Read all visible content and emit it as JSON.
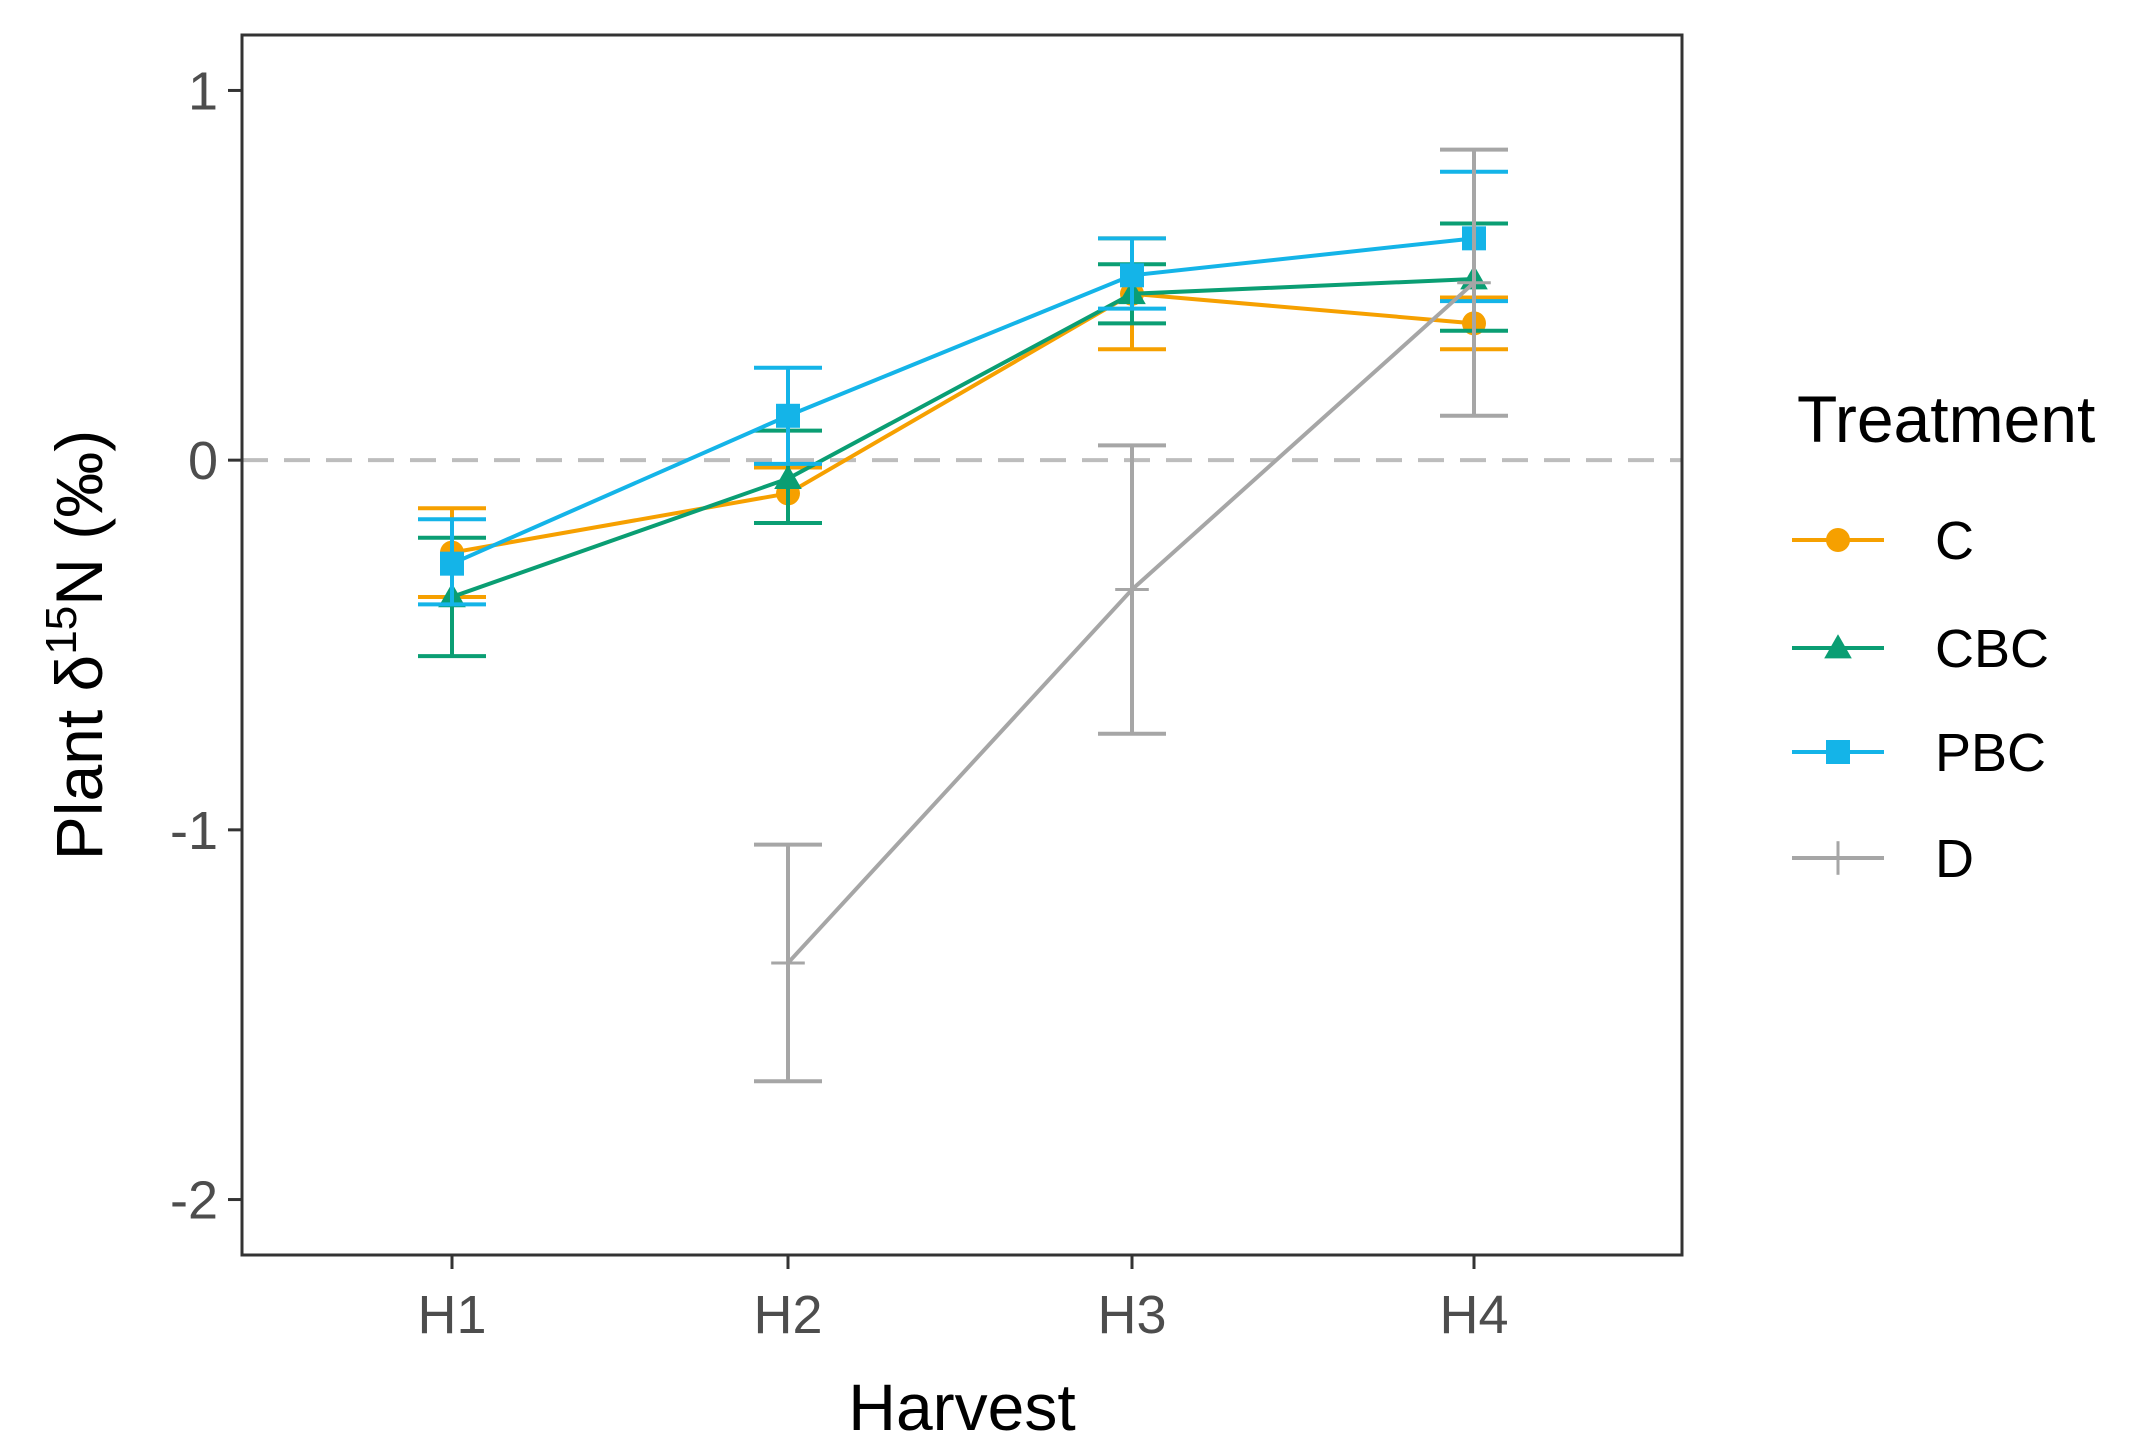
{
  "chart_data": {
    "type": "line",
    "title": "",
    "xlabel": "Harvest",
    "ylabel_prefix": "Plant  δ",
    "ylabel_superscript": "15",
    "ylabel_suffix": "N (‰)",
    "categories": [
      "H1",
      "H2",
      "H3",
      "H4"
    ],
    "yticks": [
      -2,
      -1,
      0,
      1
    ],
    "ytick_labels": [
      "-2",
      "-1",
      "0",
      "1"
    ],
    "ylim": [
      -2.15,
      1.15
    ],
    "reference_line": 0,
    "legend_title": "Treatment",
    "legend_position": "right",
    "series": [
      {
        "name": "C",
        "color": "#F6A000",
        "marker": "circle",
        "values": [
          -0.25,
          -0.09,
          0.45,
          0.37
        ],
        "lower": [
          -0.37,
          -0.17,
          0.3,
          0.3
        ],
        "upper": [
          -0.13,
          -0.02,
          0.6,
          0.44
        ]
      },
      {
        "name": "CBC",
        "color": "#0A9E73",
        "marker": "triangle",
        "values": [
          -0.37,
          -0.05,
          0.45,
          0.49
        ],
        "lower": [
          -0.53,
          -0.17,
          0.37,
          0.35
        ],
        "upper": [
          -0.21,
          0.08,
          0.53,
          0.64
        ]
      },
      {
        "name": "PBC",
        "color": "#14B4E8",
        "marker": "square",
        "values": [
          -0.28,
          0.12,
          0.5,
          0.6
        ],
        "lower": [
          -0.39,
          -0.01,
          0.41,
          0.43
        ],
        "upper": [
          -0.16,
          0.25,
          0.6,
          0.78
        ]
      },
      {
        "name": "D",
        "color": "#A6A6A6",
        "marker": "cross",
        "values": [
          null,
          -1.36,
          -0.35,
          0.48
        ],
        "lower": [
          null,
          -1.68,
          -0.74,
          0.12
        ],
        "upper": [
          null,
          -1.04,
          0.04,
          0.84
        ]
      }
    ]
  }
}
